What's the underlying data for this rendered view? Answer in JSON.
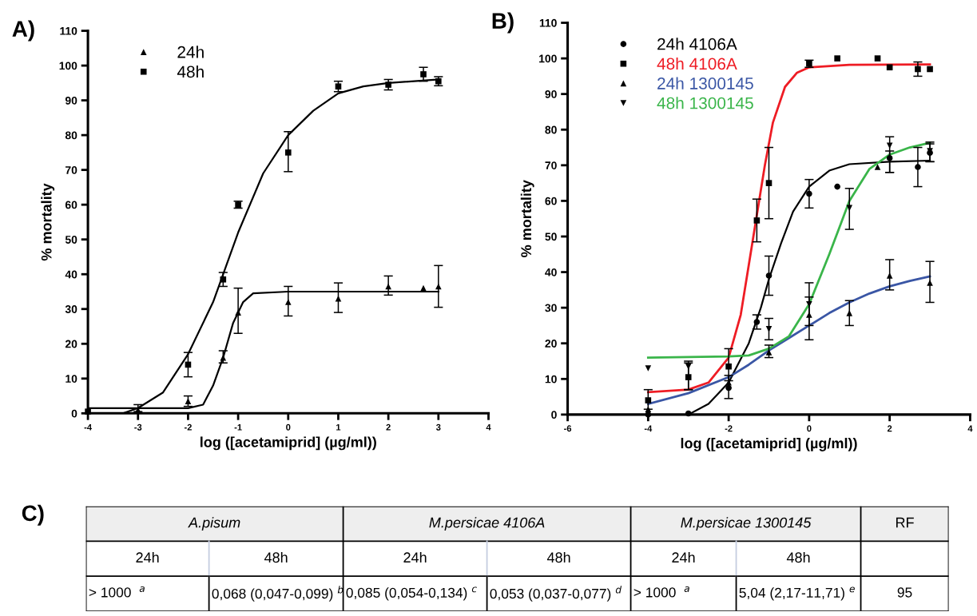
{
  "chart_data": [
    {
      "type": "scatter",
      "title": "A)",
      "xlabel": "log ([acetamiprid] (µg/ml))",
      "ylabel": "% mortality",
      "xlim": [
        -4,
        4
      ],
      "xticks": [
        -4,
        -3,
        -2,
        -1,
        0,
        1,
        2,
        3,
        4
      ],
      "ylim": [
        0,
        110
      ],
      "yticks": [
        0,
        10,
        20,
        30,
        40,
        50,
        60,
        70,
        80,
        90,
        100,
        110
      ],
      "grid": false,
      "legend": "top left",
      "series": [
        {
          "name": "24h",
          "type": "scatter",
          "marker": "triangle",
          "color": "#000000",
          "x": [
            -3,
            -2,
            -1.3,
            -1,
            0,
            1,
            2,
            2.7,
            3
          ],
          "values": [
            1,
            3.5,
            16,
            29,
            32,
            33,
            36.5,
            36,
            36.5
          ],
          "errors": [
            [
              0.5,
              2.5
            ],
            [
              2,
              5
            ],
            [
              14.5,
              18
            ],
            [
              23,
              36
            ],
            [
              28,
              36.5
            ],
            [
              29,
              37.5
            ],
            [
              34,
              39.5
            ],
            null,
            [
              30.5,
              42.5
            ]
          ]
        },
        {
          "type": "line",
          "color": "#000000",
          "x": [
            -4,
            -2,
            -1.7,
            -1.5,
            -1.3,
            -1.1,
            -0.9,
            -0.7,
            0,
            3
          ],
          "values": [
            1.5,
            1.5,
            2.5,
            8,
            16,
            26,
            32,
            34.5,
            35,
            35
          ]
        },
        {
          "name": "48h",
          "type": "scatter",
          "marker": "square",
          "color": "#000000",
          "x": [
            -4,
            -2,
            -1.3,
            -1,
            0,
            1,
            2,
            2.7,
            3
          ],
          "values": [
            0.5,
            14,
            38.5,
            60,
            75,
            94,
            94.5,
            97.5,
            95.5
          ],
          "errors": [
            null,
            [
              10.5,
              17.5
            ],
            [
              36.5,
              40.5
            ],
            [
              59,
              61
            ],
            [
              69.5,
              81
            ],
            [
              92.5,
              95.5
            ],
            [
              93,
              96
            ],
            [
              95.5,
              99.5
            ],
            [
              94.2,
              96.8
            ]
          ]
        },
        {
          "type": "line",
          "color": "#000000",
          "x": [
            -3.3,
            -3,
            -2.5,
            -2,
            -1.5,
            -1,
            -0.5,
            0,
            0.5,
            1,
            1.5,
            2,
            3
          ],
          "values": [
            0,
            1.5,
            6,
            17,
            32,
            52,
            69,
            80,
            87,
            92,
            94,
            95,
            96
          ]
        }
      ]
    },
    {
      "type": "scatter",
      "title": "B)",
      "xlabel": "log ([acetamiprid] (µg/ml))",
      "ylabel": "% mortality",
      "xlim": [
        -6,
        4
      ],
      "xticks": [
        -6,
        -4,
        -2,
        0,
        2,
        4
      ],
      "ylim": [
        0,
        110
      ],
      "yticks": [
        0,
        10,
        20,
        30,
        40,
        50,
        60,
        70,
        80,
        90,
        100,
        110
      ],
      "grid": false,
      "legend": "top left",
      "series": [
        {
          "name": "24h 4106A",
          "type": "scatter",
          "marker": "circle",
          "color": "#000000",
          "x": [
            -4,
            -3,
            -2,
            -1.3,
            -1,
            0,
            0.7,
            2,
            2.7,
            3
          ],
          "values": [
            0,
            0.3,
            7.5,
            26,
            39,
            62,
            64,
            72,
            69.5,
            73.5
          ],
          "errors": [
            null,
            null,
            [
              4.5,
              11
            ],
            [
              24,
              28
            ],
            [
              33.5,
              44.5
            ],
            [
              58,
              66
            ],
            null,
            [
              68,
              74
            ],
            [
              64,
              75
            ],
            [
              71,
              76
            ]
          ]
        },
        {
          "type": "line",
          "color": "#000000",
          "x": [
            -3,
            -2.5,
            -2,
            -1.5,
            -1.2,
            -1,
            -0.7,
            -0.4,
            0,
            0.5,
            1,
            2,
            3
          ],
          "values": [
            0,
            3,
            9,
            20,
            30,
            38,
            48,
            57,
            64,
            68.5,
            70.3,
            71,
            71.3
          ]
        },
        {
          "name": "48h 4106A",
          "type": "scatter",
          "marker": "square",
          "color": "#000000",
          "x": [
            -4,
            -3,
            -2,
            -1.3,
            -1,
            0,
            0.7,
            1.7,
            2,
            2.7,
            3
          ],
          "values": [
            4,
            10.5,
            13.5,
            54.5,
            65,
            98.5,
            100,
            100,
            97.5,
            97,
            97
          ],
          "errors": [
            [
              1.5,
              7
            ],
            [
              7,
              14.5
            ],
            [
              9.5,
              18.5
            ],
            [
              48.5,
              60.5
            ],
            [
              55,
              75
            ],
            [
              97.5,
              99.5
            ],
            null,
            null,
            null,
            [
              95,
              99
            ],
            null
          ]
        },
        {
          "type": "line",
          "color": "#ee1c24",
          "x": [
            -4,
            -3,
            -2.5,
            -2,
            -1.7,
            -1.5,
            -1.3,
            -1.1,
            -0.9,
            -0.6,
            -0.3,
            0,
            1,
            3
          ],
          "values": [
            6.3,
            7,
            9,
            16,
            28,
            42,
            56,
            70,
            82,
            92,
            96,
            97.5,
            98.2,
            98.3
          ]
        },
        {
          "name": "24h 1300145",
          "type": "scatter",
          "marker": "triangle",
          "color": "#000000",
          "x": [
            -4,
            -2,
            -1,
            0,
            1,
            1.7,
            2,
            3
          ],
          "values": [
            1.5,
            9,
            17.5,
            28,
            28.5,
            69.5,
            39,
            37
          ],
          "errors": [
            null,
            null,
            [
              16,
              19.5
            ],
            [
              21,
              33
            ],
            [
              25,
              32
            ],
            null,
            [
              35,
              43.5
            ],
            [
              31.5,
              43
            ]
          ]
        },
        {
          "type": "line",
          "color": "#3a56a5",
          "x": [
            -4,
            -3,
            -2,
            -1.5,
            -1,
            -0.5,
            0,
            0.5,
            1,
            1.5,
            2,
            2.5,
            3
          ],
          "values": [
            3,
            6,
            10.5,
            14,
            18,
            21.5,
            25,
            28.5,
            31.5,
            34,
            36,
            37.5,
            38.8
          ]
        },
        {
          "name": "48h 1300145",
          "type": "scatter",
          "marker": "triangle_down",
          "color": "#000000",
          "x": [
            -4,
            -3,
            -1,
            0,
            1,
            2,
            3
          ],
          "values": [
            13,
            13.5,
            24,
            31,
            58,
            75.5,
            74
          ],
          "errors": [
            null,
            [
              7,
              15
            ],
            [
              21,
              27
            ],
            [
              25,
              37
            ],
            [
              52,
              63.5
            ],
            [
              68,
              78
            ],
            [
              71,
              76.5
            ]
          ]
        },
        {
          "type": "line",
          "color": "#3ab54a",
          "x": [
            -4,
            -2,
            -1.5,
            -1,
            -0.5,
            0,
            0.5,
            0.8,
            1,
            1.5,
            2,
            2.5,
            3
          ],
          "values": [
            16,
            16.3,
            16.6,
            18.5,
            22,
            31,
            45,
            54,
            60,
            69,
            73,
            75,
            76.3
          ]
        }
      ]
    },
    {
      "type": "other",
      "title": "C)",
      "annotations": [
        "A.pisum",
        "M.persicae 4106A",
        "M.persicae 1300145",
        "RF",
        "24h",
        "48h",
        "24h",
        "48h",
        "24h",
        "48h",
        "> 1000  $^{a}$",
        "0,068 (0,047-0,099) $^{b}$",
        "0,085 (0,054-0,134) $^{c}$",
        "0,053 (0,037-0,077) $^{d}$",
        "> 1000  $^{a}$",
        "5,04 (2,17-11,71) $^{e}$",
        "95"
      ]
    }
  ]
}
